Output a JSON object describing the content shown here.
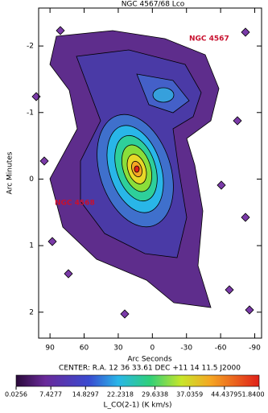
{
  "chart_data": {
    "type": "contour",
    "title": "NGC 4567/68 Lco",
    "x_label": "Arc Seconds",
    "y_label": "Arc Minutes",
    "subtitle": "CENTER:  R.A.  12  36  33.61    DEC  +11  14  11.5    J2000",
    "xlim": [
      100,
      -96
    ],
    "xticks": [
      90,
      60,
      30,
      0,
      -30,
      -60,
      -90
    ],
    "ylim": [
      -2.57,
      2.39
    ],
    "yticks": [
      -2,
      -1,
      0,
      1,
      2
    ],
    "annotations": [
      "NGC 4567",
      "NGC 4568"
    ],
    "colorbar": {
      "label": "L_CO(2-1)  (K km/s)",
      "ticks": [
        0.0256,
        7.4277,
        14.8297,
        22.2318,
        29.6338,
        37.0359,
        44.4379,
        {
          "value": 51.84,
          "label": "51.8400"
        }
      ]
    }
  }
}
